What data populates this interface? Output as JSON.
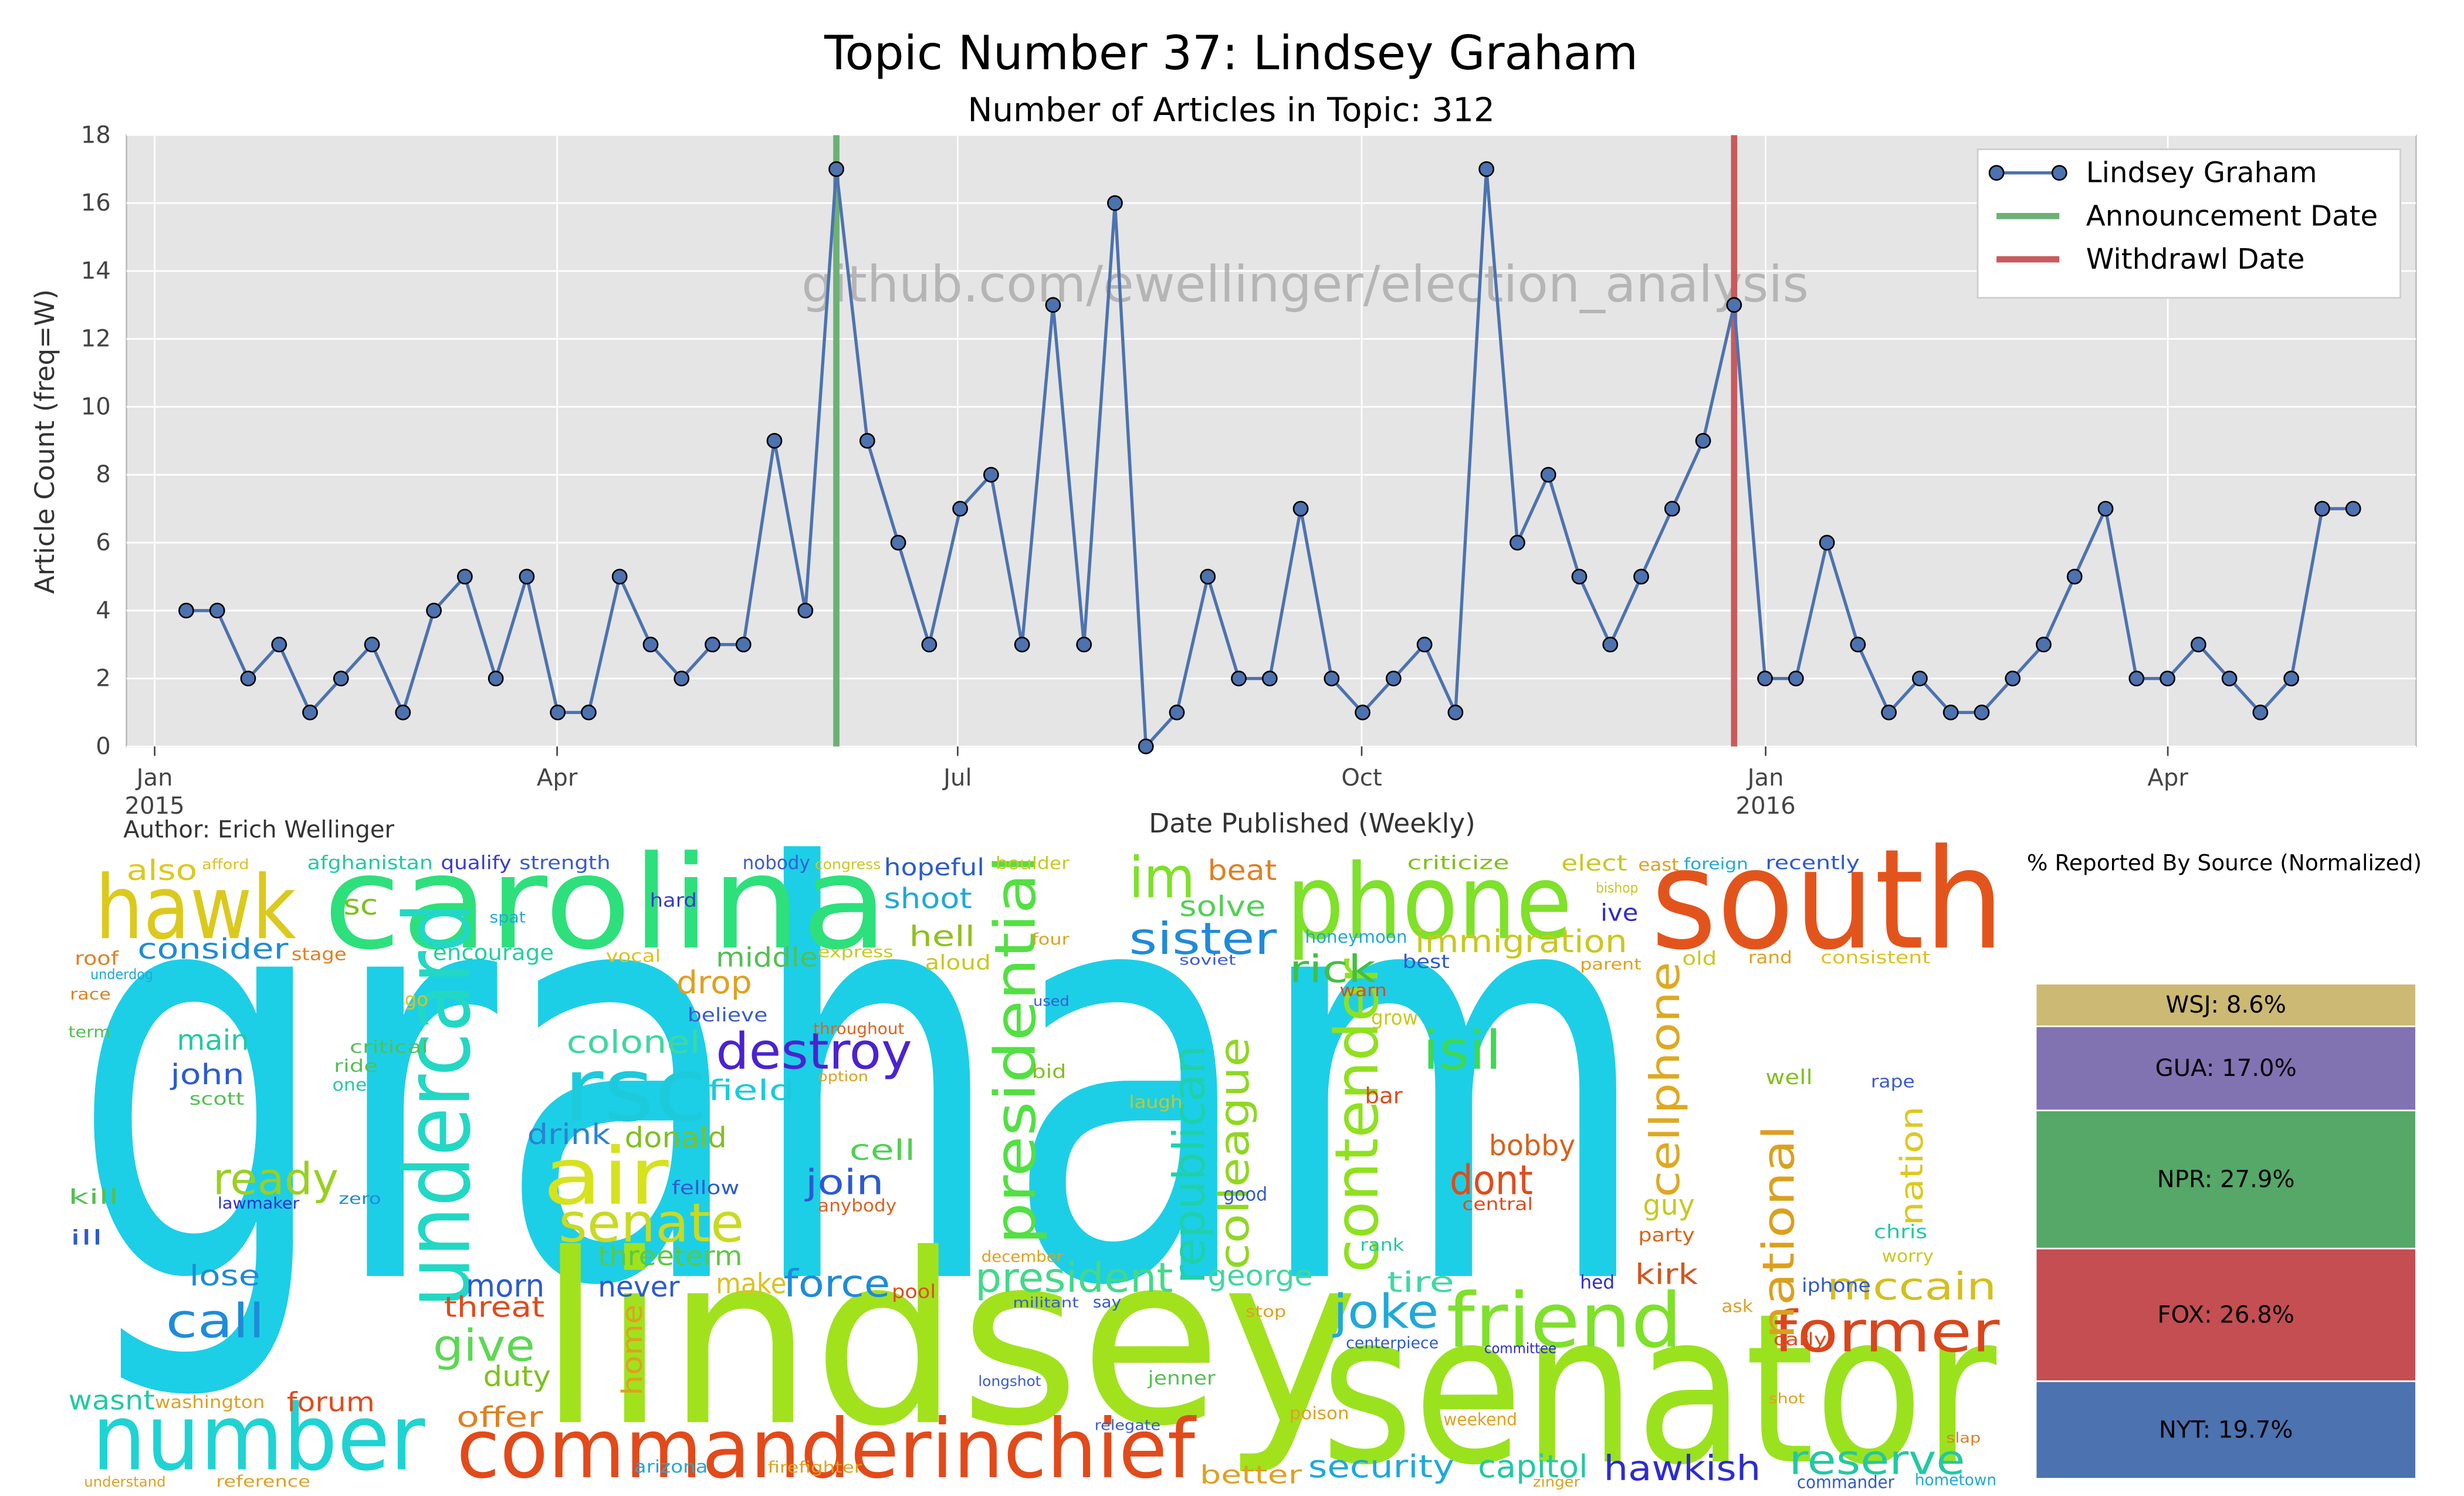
{
  "chart_data": [
    {
      "type": "line",
      "title": "Topic Number 37: Lindsey Graham",
      "subtitle": "Number of Articles in Topic: 312",
      "xlabel": "Date Published (Weekly)",
      "ylabel": "Article Count (freq=W)",
      "watermark": "github.com/ewellinger/election_analysis",
      "author": "Author: Erich Wellinger",
      "categories": [
        null,
        null,
        null,
        null,
        null,
        null,
        null,
        null,
        null,
        null,
        null,
        null,
        null,
        null,
        null,
        null,
        null,
        null,
        null,
        null,
        null,
        null,
        null,
        null,
        null,
        null,
        null,
        null,
        null,
        null,
        null,
        null,
        null,
        null,
        null,
        null,
        null,
        null,
        null,
        null,
        null,
        null,
        null,
        null,
        null,
        null,
        null,
        null,
        null,
        null,
        null,
        null,
        null,
        null,
        null,
        null,
        null,
        null,
        null,
        null,
        null,
        null,
        null,
        null,
        null,
        null,
        null,
        null,
        null,
        null,
        null
      ],
      "series": [
        {
          "name": "Lindsey Graham",
          "color": "#4c72b0",
          "values": [
            4,
            4,
            2,
            3,
            1,
            2,
            3,
            1,
            4,
            5,
            2,
            5,
            1,
            1,
            5,
            3,
            2,
            3,
            3,
            9,
            4,
            17,
            9,
            6,
            3,
            7,
            8,
            3,
            13,
            3,
            16,
            0,
            1,
            5,
            2,
            2,
            7,
            2,
            1,
            2,
            3,
            1,
            17,
            6,
            8,
            5,
            3,
            5,
            7,
            9,
            13,
            2,
            2,
            6,
            3,
            1,
            2,
            1,
            1,
            2,
            3,
            5,
            7,
            2,
            2,
            3,
            2,
            1,
            2,
            7,
            7
          ]
        }
      ],
      "markers": [
        {
          "name": "Announcement Date",
          "color": "#6bb176",
          "x": 21
        },
        {
          "name": "Withdrawl Date",
          "color": "#c85a5e",
          "x": 50
        }
      ],
      "xlim": [
        -1.93,
        72.03
      ],
      "xticks": [
        {
          "value": -1.02,
          "label": "Jan"
        },
        {
          "value": 11.98,
          "label": "Apr"
        },
        {
          "value": 24.92,
          "label": "Jul"
        },
        {
          "value": 37.97,
          "label": "Oct"
        },
        {
          "value": 51.02,
          "label": "Jan"
        },
        {
          "value": 64.01,
          "label": "Apr"
        }
      ],
      "xtick_sublabels": [
        {
          "value": -1.02,
          "label": "2015"
        },
        {
          "value": 51.02,
          "label": "2016"
        }
      ],
      "ylim": [
        0,
        18
      ],
      "yticks": [
        0,
        2,
        4,
        6,
        8,
        10,
        12,
        14,
        16,
        18
      ],
      "grid": true,
      "legend": "upper right"
    },
    {
      "type": "wordcloud",
      "words": [
        {
          "text": "graham",
          "color": "#1ccfe6"
        },
        {
          "text": "lindsey",
          "color": "#a1e21d"
        },
        {
          "text": "senator",
          "color": "#9ae21e"
        },
        {
          "text": "south",
          "color": "#e3541c"
        },
        {
          "text": "carolina",
          "color": "#2de07c"
        },
        {
          "text": "phone",
          "color": "#7ee12a"
        },
        {
          "text": "hawk",
          "color": "#dcc91d"
        },
        {
          "text": "undercard",
          "color": "#22d8c4"
        },
        {
          "text": "rsc",
          "color": "#1ccadb"
        },
        {
          "text": "air",
          "color": "#d6e21e"
        },
        {
          "text": "senate",
          "color": "#c9da20"
        },
        {
          "text": "destroy",
          "color": "#4b22d2"
        },
        {
          "text": "presidential",
          "color": "#52e042"
        },
        {
          "text": "im",
          "color": "#7de128"
        },
        {
          "text": "sister",
          "color": "#1e8bd9"
        },
        {
          "text": "contender",
          "color": "#8fe11f"
        },
        {
          "text": "isil",
          "color": "#3ed852"
        },
        {
          "text": "republican",
          "color": "#1fd0aa"
        },
        {
          "text": "colleague",
          "color": "#8fd821"
        },
        {
          "text": "commanderinchief",
          "color": "#e24a1a"
        },
        {
          "text": "number",
          "color": "#1fd3d3"
        },
        {
          "text": "friend",
          "color": "#7ee12a"
        },
        {
          "text": "former",
          "color": "#da461b"
        },
        {
          "text": "joke",
          "color": "#1ea9da"
        },
        {
          "text": "mccain",
          "color": "#d3bf1f"
        },
        {
          "text": "reserve",
          "color": "#22c9a2"
        },
        {
          "text": "national",
          "color": "#dca01f"
        },
        {
          "text": "cellphone",
          "color": "#dfa81f"
        },
        {
          "text": "nation",
          "color": "#dcc91d"
        },
        {
          "text": "dont",
          "color": "#e24a1a"
        },
        {
          "text": "bobby",
          "color": "#d9621a"
        },
        {
          "text": "guy",
          "color": "#c9c820"
        },
        {
          "text": "kirk",
          "color": "#d1561e"
        },
        {
          "text": "hawkish",
          "color": "#2c2cd2"
        },
        {
          "text": "security",
          "color": "#1ea9da"
        },
        {
          "text": "capitol",
          "color": "#22c9a2"
        },
        {
          "text": "president",
          "color": "#44d88a"
        },
        {
          "text": "george",
          "color": "#3fd8a0"
        },
        {
          "text": "tire",
          "color": "#3fd8a0"
        },
        {
          "text": "rick",
          "color": "#41c041"
        },
        {
          "text": "solve",
          "color": "#52d052"
        },
        {
          "text": "beat",
          "color": "#e08020"
        },
        {
          "text": "immigration",
          "color": "#c9c820"
        },
        {
          "text": "drop",
          "color": "#e0a020"
        },
        {
          "text": "middle",
          "color": "#52c052"
        },
        {
          "text": "hell",
          "color": "#90c020"
        },
        {
          "text": "shoot",
          "color": "#1ea9da"
        },
        {
          "text": "hopeful",
          "color": "#2c5ad2"
        },
        {
          "text": "colonel",
          "color": "#3fd8a0"
        },
        {
          "text": "field",
          "color": "#1ccadb"
        },
        {
          "text": "drink",
          "color": "#2c82d2"
        },
        {
          "text": "donald",
          "color": "#80c020"
        },
        {
          "text": "cell",
          "color": "#52d052"
        },
        {
          "text": "join",
          "color": "#2c5ad2"
        },
        {
          "text": "force",
          "color": "#1e8bd9"
        },
        {
          "text": "never",
          "color": "#2c5ad2"
        },
        {
          "text": "make",
          "color": "#e0c020"
        },
        {
          "text": "morn",
          "color": "#2c5ad2"
        },
        {
          "text": "threeterm",
          "color": "#5cc842"
        },
        {
          "text": "threat",
          "color": "#e24a1a"
        },
        {
          "text": "give",
          "color": "#5cd852"
        },
        {
          "text": "duty",
          "color": "#80c020"
        },
        {
          "text": "home",
          "color": "#e0a020"
        },
        {
          "text": "offer",
          "color": "#e08020"
        },
        {
          "text": "forum",
          "color": "#e24a1a"
        },
        {
          "text": "wasnt",
          "color": "#22c9a2"
        },
        {
          "text": "call",
          "color": "#1e8bd9"
        },
        {
          "text": "lose",
          "color": "#1e8bd9"
        },
        {
          "text": "ready",
          "color": "#9ad020"
        },
        {
          "text": "main",
          "color": "#22c9a2"
        },
        {
          "text": "john",
          "color": "#2c5ad2"
        },
        {
          "text": "consider",
          "color": "#1e8bd9"
        },
        {
          "text": "also",
          "color": "#dcc91d"
        },
        {
          "text": "sc",
          "color": "#80c020"
        },
        {
          "text": "encourage",
          "color": "#22d0a2"
        },
        {
          "text": "afghanistan",
          "color": "#22c9a2"
        },
        {
          "text": "qualify",
          "color": "#3a3ad2"
        },
        {
          "text": "strength",
          "color": "#3a5ad2"
        },
        {
          "text": "nobody",
          "color": "#3a5ad2"
        },
        {
          "text": "hard",
          "color": "#3a3ad2"
        },
        {
          "text": "believe",
          "color": "#3a5ad2"
        },
        {
          "text": "fellow",
          "color": "#2c5ad2"
        },
        {
          "text": "anybody",
          "color": "#e06020"
        },
        {
          "text": "pool",
          "color": "#e24a1a"
        },
        {
          "text": "criticize",
          "color": "#80c020"
        },
        {
          "text": "elect",
          "color": "#c9c820"
        },
        {
          "text": "recently",
          "color": "#2c5ad2"
        },
        {
          "text": "honeymoon",
          "color": "#1ea9da"
        },
        {
          "text": "ive",
          "color": "#2c2cd2"
        },
        {
          "text": "warn",
          "color": "#e24a1a"
        },
        {
          "text": "bar",
          "color": "#e24a1a"
        },
        {
          "text": "grow",
          "color": "#c9c820"
        },
        {
          "text": "rank",
          "color": "#22c9a2"
        },
        {
          "text": "rape",
          "color": "#3a5ad2"
        },
        {
          "text": "well",
          "color": "#80c020"
        },
        {
          "text": "chris",
          "color": "#22c9a2"
        },
        {
          "text": "worry",
          "color": "#c9c820"
        },
        {
          "text": "iphone",
          "color": "#2c5ad2"
        },
        {
          "text": "carly",
          "color": "#e24a1a"
        },
        {
          "text": "party",
          "color": "#d9621a"
        },
        {
          "text": "hed",
          "color": "#2c2cd2"
        },
        {
          "text": "weekend",
          "color": "#e0a020"
        },
        {
          "text": "jenner",
          "color": "#52c052"
        },
        {
          "text": "better",
          "color": "#e0a020"
        },
        {
          "text": "poison",
          "color": "#e0a020"
        },
        {
          "text": "good",
          "color": "#2c5ad2"
        },
        {
          "text": "old",
          "color": "#c9c820"
        },
        {
          "text": "rand",
          "color": "#e0a020"
        },
        {
          "text": "consistent",
          "color": "#e0c020"
        },
        {
          "text": "best",
          "color": "#2c5ad2"
        },
        {
          "text": "central",
          "color": "#e24a1a"
        },
        {
          "text": "lawmaker",
          "color": "#2c2cd2"
        },
        {
          "text": "zero",
          "color": "#1e8bd9"
        },
        {
          "text": "ill",
          "color": "#2c5ad2"
        },
        {
          "text": "kill",
          "color": "#52c052"
        },
        {
          "text": "scott",
          "color": "#52c052"
        },
        {
          "text": "race",
          "color": "#e08020"
        },
        {
          "text": "roof",
          "color": "#e08020"
        },
        {
          "text": "term",
          "color": "#52c052"
        },
        {
          "text": "one",
          "color": "#22c9a2"
        },
        {
          "text": "ride",
          "color": "#52c052"
        },
        {
          "text": "washington",
          "color": "#e0a020"
        },
        {
          "text": "understand",
          "color": "#e0a020"
        },
        {
          "text": "reference",
          "color": "#e0a020"
        },
        {
          "text": "arizona",
          "color": "#1ea9da"
        },
        {
          "text": "firefighter",
          "color": "#e0a020"
        },
        {
          "text": "longshot",
          "color": "#3a5ad2"
        },
        {
          "text": "say",
          "color": "#2c5ad2"
        },
        {
          "text": "stage",
          "color": "#e08020"
        },
        {
          "text": "spat",
          "color": "#1ea9da"
        },
        {
          "text": "vocal",
          "color": "#e0c020"
        },
        {
          "text": "express",
          "color": "#c9c820"
        },
        {
          "text": "aloud",
          "color": "#c9c820"
        },
        {
          "text": "four",
          "color": "#e0a020"
        },
        {
          "text": "bid",
          "color": "#80c020"
        },
        {
          "text": "laugh",
          "color": "#c9c820"
        },
        {
          "text": "throughout",
          "color": "#e06020"
        },
        {
          "text": "option",
          "color": "#e0a020"
        },
        {
          "text": "december",
          "color": "#e0a020"
        },
        {
          "text": "militant",
          "color": "#3a5ad2"
        },
        {
          "text": "stop",
          "color": "#e0a020"
        },
        {
          "text": "centerpiece",
          "color": "#2c5ad2"
        },
        {
          "text": "committee",
          "color": "#2c2cd2"
        },
        {
          "text": "ask",
          "color": "#e0a020"
        },
        {
          "text": "shot",
          "color": "#e0a020"
        },
        {
          "text": "commander",
          "color": "#2c5ad2"
        },
        {
          "text": "hometown",
          "color": "#1ea9da"
        },
        {
          "text": "slap",
          "color": "#e08020"
        },
        {
          "text": "zinger",
          "color": "#e0a020"
        },
        {
          "text": "relegate",
          "color": "#3a5ad2"
        },
        {
          "text": "boulder",
          "color": "#c9c820"
        },
        {
          "text": "congress",
          "color": "#c9c820"
        },
        {
          "text": "foreign",
          "color": "#1ea9da"
        },
        {
          "text": "east",
          "color": "#e0a020"
        },
        {
          "text": "bishop",
          "color": "#c9c820"
        },
        {
          "text": "parent",
          "color": "#e0a020"
        },
        {
          "text": "soviet",
          "color": "#3a5ad2"
        },
        {
          "text": "used",
          "color": "#3a5ad2"
        },
        {
          "text": "afford",
          "color": "#e0c020"
        },
        {
          "text": "underdog",
          "color": "#1ea9da"
        },
        {
          "text": "go",
          "color": "#e0c020"
        },
        {
          "text": "critical",
          "color": "#52c052"
        }
      ]
    },
    {
      "type": "stacked_bar",
      "title": "% Reported By Source (Normalized)",
      "values": [
        19.7,
        26.8,
        27.9,
        17.0,
        8.6
      ],
      "value_labels": [
        "NYT: 19.7%",
        "FOX: 26.8%",
        "NPR: 27.9%",
        "GUA: 17.0%",
        "WSJ: 8.6%"
      ],
      "colors": [
        "#4c72b0",
        "#c44e52",
        "#55a868",
        "#8172b2",
        "#ccb974"
      ],
      "ylim": [
        0,
        100
      ]
    }
  ]
}
